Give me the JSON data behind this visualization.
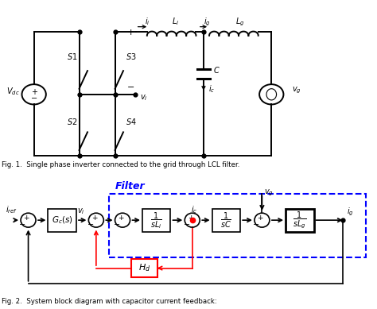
{
  "fig_width": 4.74,
  "fig_height": 3.89,
  "dpi": 100,
  "bg_color": "#ffffff",
  "fig1_caption": "Fig. 1.  Single phase inverter connected to the grid through LCL filter.",
  "fig2_caption": "Fig. 2.  System block diagram with capacitor current feedback:",
  "filter_label": "Filter",
  "blue_dashed_color": "#0000FF",
  "red_color": "#FF0000",
  "black_color": "#000000",
  "title_partial": "Fig. 1."
}
